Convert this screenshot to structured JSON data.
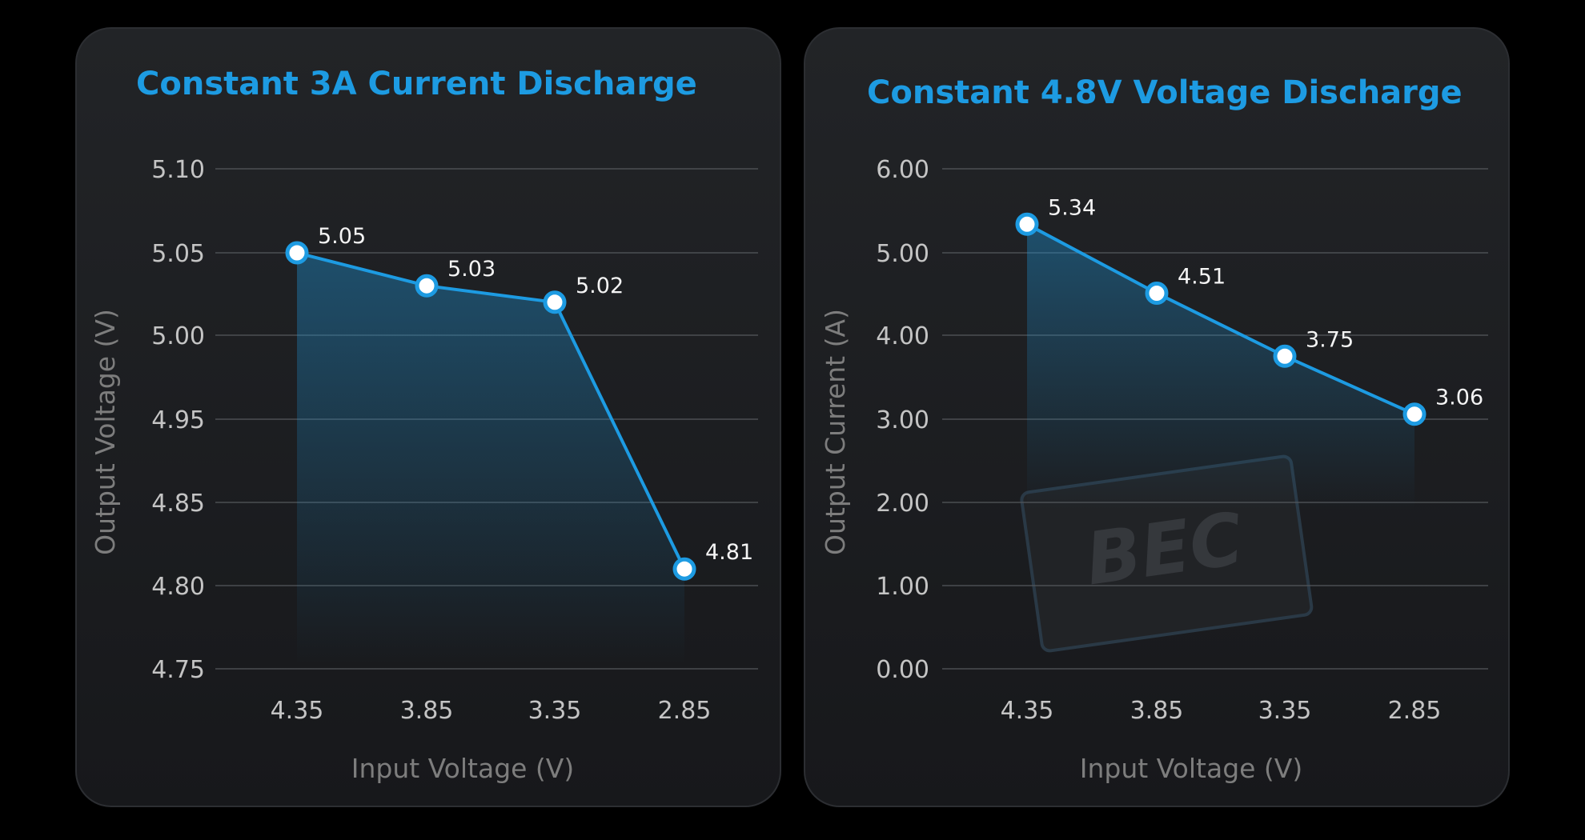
{
  "colors": {
    "accent": "#1d9be2",
    "card": "#1b1c1f",
    "grid": "#55585c",
    "background": "#000000"
  },
  "chart_data": [
    {
      "type": "line",
      "title": "Constant 3A Current Discharge",
      "xlabel": "Input Voltage (V)",
      "ylabel": "Output Voltage (V)",
      "categories": [
        "4.35",
        "3.85",
        "3.35",
        "2.85"
      ],
      "values": [
        5.05,
        5.03,
        5.02,
        4.81
      ],
      "data_labels": [
        "5.05",
        "5.03",
        "5.02",
        "4.81"
      ],
      "yticks": [
        "5.10",
        "5.05",
        "5.00",
        "4.95",
        "4.85",
        "4.80",
        "4.75"
      ],
      "ylim": [
        4.75,
        5.1
      ],
      "grid": true,
      "area_fill": true
    },
    {
      "type": "line",
      "title": "Constant 4.8V Voltage Discharge",
      "xlabel": "Input Voltage (V)",
      "ylabel": "Output Current (A)",
      "categories": [
        "4.35",
        "3.85",
        "3.35",
        "2.85"
      ],
      "values": [
        5.34,
        4.51,
        3.75,
        3.06
      ],
      "data_labels": [
        "5.34",
        "4.51",
        "3.75",
        "3.06"
      ],
      "yticks": [
        "6.00",
        "5.00",
        "4.00",
        "3.00",
        "2.00",
        "1.00",
        "0.00"
      ],
      "ylim": [
        0,
        6
      ],
      "grid": true,
      "area_fill": true,
      "watermark": "BEC"
    }
  ]
}
